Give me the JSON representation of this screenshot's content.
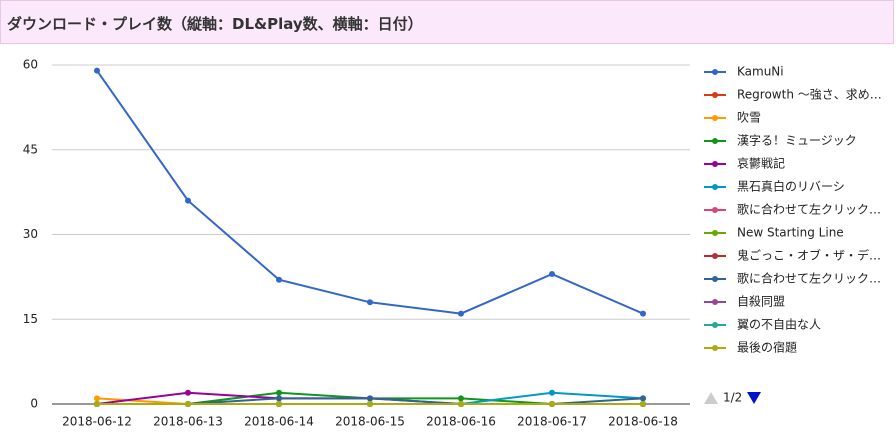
{
  "chart_data": {
    "type": "line",
    "title": "ダウンロード・プレイ数（縦軸：DL&Play数、横軸：日付）",
    "categories": [
      "2018-06-12",
      "2018-06-13",
      "2018-06-14",
      "2018-06-15",
      "2018-06-16",
      "2018-06-17",
      "2018-06-18"
    ],
    "ylim": [
      0,
      60
    ],
    "yticks": [
      0,
      15,
      30,
      45,
      60
    ],
    "grid": true,
    "legend": "right",
    "legend_page": "1/2",
    "series": [
      {
        "name": "KamuNi",
        "color": "#3366cc",
        "values": [
          59,
          36,
          22,
          18,
          16,
          23,
          16
        ]
      },
      {
        "name": "Regrowth ～強さ、求め…",
        "color": "#dc3912",
        "values": [
          0,
          0,
          0,
          0,
          0,
          0,
          0
        ]
      },
      {
        "name": "吹雪",
        "color": "#ff9900",
        "values": [
          1,
          0,
          0,
          0,
          0,
          0,
          0
        ]
      },
      {
        "name": "漢字る！ミュージック",
        "color": "#109618",
        "values": [
          0,
          0,
          2,
          1,
          1,
          0,
          0
        ]
      },
      {
        "name": "哀鬱戦記",
        "color": "#990099",
        "values": [
          0,
          2,
          1,
          1,
          0,
          0,
          0
        ]
      },
      {
        "name": "黒石真白のリバーシ",
        "color": "#0099c6",
        "values": [
          0,
          0,
          0,
          0,
          0,
          2,
          1
        ]
      },
      {
        "name": "歌に合わせて左クリック…",
        "color": "#dd4477",
        "values": [
          0,
          0,
          0,
          0,
          0,
          0,
          0
        ]
      },
      {
        "name": "New Starting Line",
        "color": "#66aa00",
        "values": [
          0,
          0,
          0,
          0,
          0,
          0,
          0
        ]
      },
      {
        "name": "鬼ごっこ・オブ・ザ・デ…",
        "color": "#b82e2e",
        "values": [
          0,
          0,
          0,
          0,
          0,
          0,
          0
        ]
      },
      {
        "name": "歌に合わせて左クリック…",
        "color": "#316395",
        "values": [
          0,
          0,
          1,
          1,
          0,
          0,
          1
        ]
      },
      {
        "name": "自殺同盟",
        "color": "#994499",
        "values": [
          0,
          0,
          0,
          0,
          0,
          0,
          0
        ]
      },
      {
        "name": "翼の不自由な人",
        "color": "#22aa99",
        "values": [
          0,
          0,
          0,
          0,
          0,
          0,
          0
        ]
      },
      {
        "name": "最後の宿題",
        "color": "#aaaa11",
        "values": [
          0,
          0,
          0,
          0,
          0,
          0,
          0
        ]
      }
    ]
  }
}
